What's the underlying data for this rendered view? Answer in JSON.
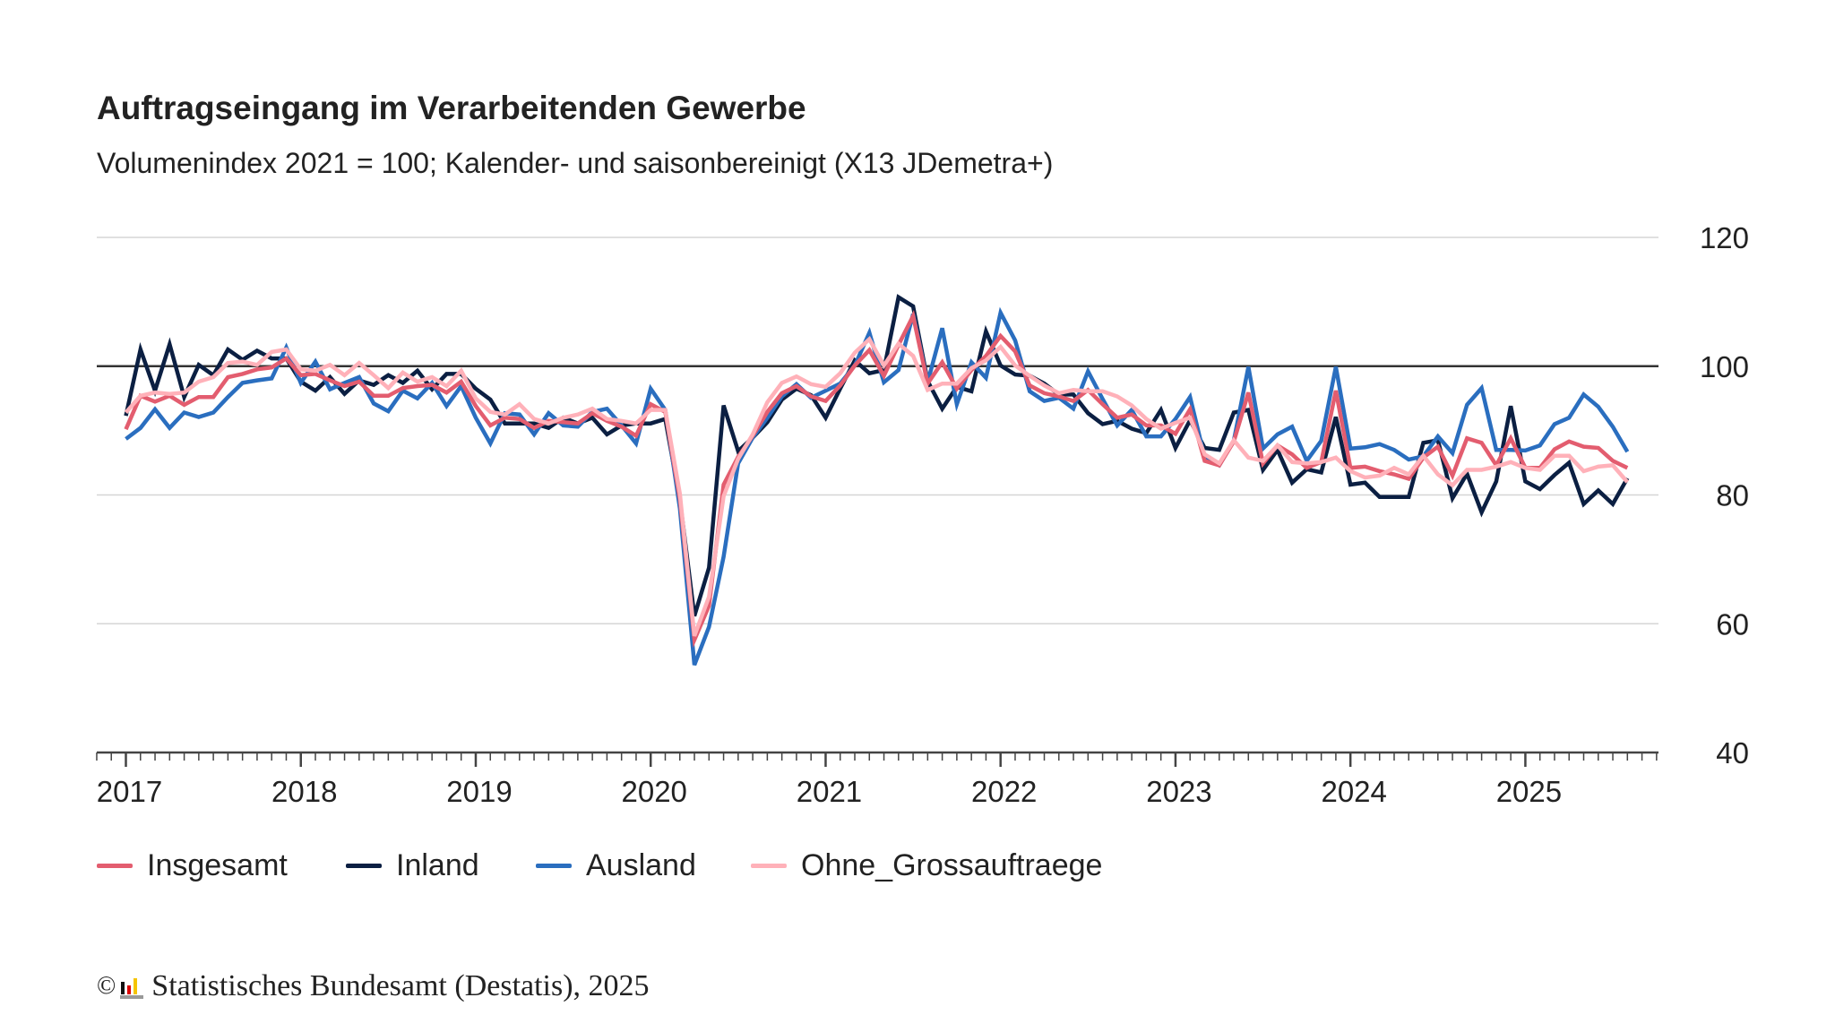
{
  "title": "Auftragseingang im Verarbeitenden Gewerbe",
  "subtitle": "Volumenindex 2021 = 100; Kalender- und saisonbereinigt (X13 JDemetra+)",
  "footer": {
    "copyright_symbol": "©",
    "text": "Statistisches Bundesamt (Destatis), 2025"
  },
  "chart_data": {
    "type": "line",
    "title": "Auftragseingang im Verarbeitenden Gewerbe",
    "subtitle": "Volumenindex 2021 = 100; Kalender- und saisonbereinigt (X13 JDemetra+)",
    "xlabel": "",
    "ylabel": "",
    "ylim": [
      40,
      120
    ],
    "yticks": [
      40,
      60,
      80,
      100,
      120
    ],
    "y_axis_position": "right",
    "reference_line": 100,
    "grid": true,
    "legend_position": "bottom-left",
    "xticks": [
      "2017",
      "2018",
      "2019",
      "2020",
      "2021",
      "2022",
      "2023",
      "2024",
      "2025"
    ],
    "x": [
      "2017-01",
      "2017-02",
      "2017-03",
      "2017-04",
      "2017-05",
      "2017-06",
      "2017-07",
      "2017-08",
      "2017-09",
      "2017-10",
      "2017-11",
      "2017-12",
      "2018-01",
      "2018-02",
      "2018-03",
      "2018-04",
      "2018-05",
      "2018-06",
      "2018-07",
      "2018-08",
      "2018-09",
      "2018-10",
      "2018-11",
      "2018-12",
      "2019-01",
      "2019-02",
      "2019-03",
      "2019-04",
      "2019-05",
      "2019-06",
      "2019-07",
      "2019-08",
      "2019-09",
      "2019-10",
      "2019-11",
      "2019-12",
      "2020-01",
      "2020-02",
      "2020-03",
      "2020-04",
      "2020-05",
      "2020-06",
      "2020-07",
      "2020-08",
      "2020-09",
      "2020-10",
      "2020-11",
      "2020-12",
      "2021-01",
      "2021-02",
      "2021-03",
      "2021-04",
      "2021-05",
      "2021-06",
      "2021-07",
      "2021-08",
      "2021-09",
      "2021-10",
      "2021-11",
      "2021-12",
      "2022-01",
      "2022-02",
      "2022-03",
      "2022-04",
      "2022-05",
      "2022-06",
      "2022-07",
      "2022-08",
      "2022-09",
      "2022-10",
      "2022-11",
      "2022-12",
      "2023-01",
      "2023-02",
      "2023-03",
      "2023-04",
      "2023-05",
      "2023-06",
      "2023-07",
      "2023-08",
      "2023-09",
      "2023-10",
      "2023-11",
      "2023-12",
      "2024-01",
      "2024-02",
      "2024-03",
      "2024-04",
      "2024-05",
      "2024-06",
      "2024-07",
      "2024-08",
      "2024-09",
      "2024-10",
      "2024-11",
      "2024-12",
      "2025-01",
      "2025-02",
      "2025-03",
      "2025-04",
      "2025-05",
      "2025-06",
      "2025-07",
      "2025-08"
    ],
    "series": [
      {
        "name": "Insgesamt",
        "color": "#e35d6f",
        "values": [
          90.2,
          95.4,
          94.5,
          95.4,
          94.0,
          95.2,
          95.2,
          98.3,
          98.8,
          99.5,
          99.8,
          101.2,
          98.6,
          98.8,
          97.8,
          96.9,
          97.6,
          95.4,
          95.4,
          96.6,
          96.9,
          97.1,
          95.9,
          97.6,
          93.8,
          90.8,
          92.0,
          91.8,
          90.4,
          91.5,
          91.3,
          91.1,
          92.7,
          91.5,
          90.6,
          89.2,
          94.1,
          92.9,
          79.3,
          57.5,
          62.8,
          81.6,
          85.9,
          89.2,
          92.9,
          95.8,
          96.9,
          95.3,
          94.6,
          97.0,
          100.1,
          102.5,
          98.5,
          103.3,
          107.8,
          97.3,
          100.6,
          96.5,
          99.4,
          101.6,
          104.7,
          102.3,
          97.0,
          95.8,
          95.3,
          94.6,
          96.3,
          94.1,
          92.0,
          92.5,
          90.8,
          90.8,
          89.5,
          93.3,
          85.3,
          84.6,
          88.3,
          95.9,
          84.9,
          87.7,
          86.3,
          84.2,
          85.1,
          96.2,
          84.2,
          84.4,
          83.7,
          83.2,
          82.5,
          85.8,
          87.5,
          83.0,
          88.8,
          88.1,
          84.6,
          88.8,
          84.2,
          84.2,
          87.1,
          88.3,
          87.5,
          87.3,
          85.3,
          84.2
        ]
      },
      {
        "name": "Inland",
        "color": "#0b1f42",
        "values": [
          92.3,
          102.6,
          96.2,
          103.4,
          95.2,
          100.2,
          98.6,
          102.6,
          101.0,
          102.4,
          101.2,
          101.2,
          97.6,
          96.2,
          98.3,
          95.7,
          97.8,
          97.1,
          98.6,
          97.4,
          99.3,
          96.4,
          98.8,
          98.8,
          96.5,
          94.8,
          91.1,
          91.1,
          91.1,
          90.4,
          92.0,
          91.1,
          92.0,
          89.4,
          90.8,
          91.1,
          91.1,
          91.8,
          79.3,
          61.2,
          68.7,
          93.9,
          86.8,
          88.9,
          91.3,
          94.8,
          96.5,
          95.5,
          92.0,
          96.5,
          100.9,
          98.9,
          99.4,
          110.7,
          109.3,
          97.7,
          93.4,
          96.8,
          96.1,
          105.4,
          100.1,
          98.7,
          98.5,
          97.3,
          95.6,
          95.6,
          92.7,
          91.0,
          91.5,
          90.3,
          89.6,
          93.2,
          87.3,
          91.6,
          87.3,
          87.0,
          92.8,
          93.2,
          83.9,
          87.0,
          81.9,
          84.0,
          83.5,
          92.1,
          81.6,
          81.9,
          79.7,
          79.7,
          79.7,
          88.1,
          88.5,
          79.5,
          83.3,
          77.3,
          82.1,
          93.8,
          82.1,
          80.9,
          83.1,
          85.0,
          78.6,
          80.7,
          78.6,
          82.6
        ]
      },
      {
        "name": "Ausland",
        "color": "#2a6ebf",
        "values": [
          88.7,
          90.4,
          93.3,
          90.4,
          92.8,
          92.1,
          92.8,
          95.2,
          97.4,
          97.8,
          98.1,
          102.9,
          97.4,
          100.7,
          96.4,
          97.4,
          98.3,
          94.2,
          93.0,
          96.2,
          95.0,
          97.4,
          93.8,
          96.9,
          92.0,
          88.0,
          92.7,
          92.5,
          89.4,
          92.7,
          90.8,
          90.6,
          92.9,
          93.4,
          90.8,
          88.0,
          96.5,
          93.2,
          77.9,
          53.6,
          59.5,
          70.4,
          84.9,
          88.9,
          92.0,
          95.3,
          97.2,
          95.1,
          96.2,
          97.3,
          100.1,
          105.2,
          97.5,
          99.4,
          108.1,
          97.5,
          105.9,
          94.1,
          100.6,
          98.2,
          108.3,
          104.0,
          96.1,
          94.6,
          95.1,
          93.4,
          99.2,
          94.9,
          90.8,
          93.2,
          89.1,
          89.1,
          91.8,
          95.2,
          85.8,
          84.6,
          88.4,
          99.9,
          87.2,
          89.4,
          90.6,
          85.3,
          88.4,
          99.9,
          87.2,
          87.4,
          87.9,
          87.0,
          85.5,
          86.0,
          89.1,
          86.5,
          94.0,
          96.6,
          87.0,
          87.0,
          86.9,
          87.7,
          91.0,
          92.0,
          95.6,
          93.7,
          90.6,
          86.7
        ]
      },
      {
        "name": "Ohne_Grossauftraege",
        "color": "#ffb1b9",
        "values": [
          92.8,
          95.4,
          95.9,
          95.7,
          95.9,
          97.6,
          98.3,
          100.5,
          100.7,
          100.2,
          102.2,
          102.6,
          99.5,
          99.3,
          100.2,
          98.6,
          100.5,
          98.6,
          96.6,
          99.0,
          97.6,
          98.3,
          96.9,
          99.3,
          95.0,
          92.9,
          92.5,
          94.1,
          91.8,
          91.1,
          92.0,
          92.5,
          93.4,
          91.8,
          91.5,
          91.1,
          93.2,
          93.2,
          80.2,
          58.1,
          64.2,
          79.8,
          85.6,
          89.4,
          94.4,
          97.4,
          98.4,
          97.2,
          96.8,
          98.9,
          102.1,
          104.2,
          100.1,
          103.5,
          101.6,
          96.3,
          97.3,
          97.3,
          99.7,
          100.9,
          103.0,
          100.1,
          98.5,
          97.0,
          95.8,
          96.3,
          96.1,
          96.1,
          95.3,
          93.9,
          91.8,
          90.3,
          91.2,
          92.0,
          86.3,
          84.9,
          88.5,
          85.8,
          85.3,
          87.7,
          85.1,
          84.9,
          85.1,
          85.8,
          83.7,
          82.7,
          83.0,
          84.2,
          83.2,
          86.1,
          83.2,
          81.5,
          83.9,
          83.9,
          84.4,
          85.1,
          84.2,
          83.9,
          86.1,
          86.1,
          83.7,
          84.4,
          84.6,
          82.0
        ]
      }
    ]
  }
}
